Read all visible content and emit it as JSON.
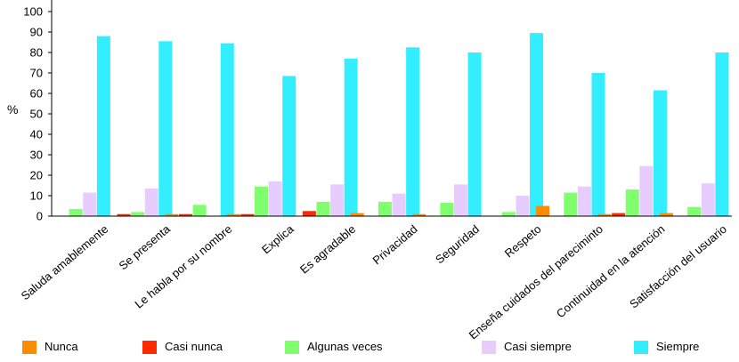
{
  "chart_data": {
    "type": "bar",
    "title": "",
    "xlabel": "",
    "ylabel": "%",
    "ylim": [
      0,
      100
    ],
    "yticks": [
      0,
      10,
      20,
      30,
      40,
      50,
      60,
      70,
      80,
      90,
      100
    ],
    "grid": false,
    "legend_position": "bottom",
    "categories": [
      "Saluda amablemente",
      "Se presenta",
      "Le habla por su nombre",
      "Explica",
      "Es agradable",
      "Privacidad",
      "Seguridad",
      "Respeto",
      "Enseña cuidados del pareciminto",
      "Continuidad en la atención",
      "Satisfacción del usuario"
    ],
    "series": [
      {
        "name": "Nunca",
        "color": "#ff8c00",
        "values": [
          0,
          0,
          1,
          1,
          0,
          1.5,
          1,
          0,
          5,
          1,
          1.5
        ]
      },
      {
        "name": "Casi nunca",
        "color": "#ff2a00",
        "values": [
          0,
          1,
          1,
          1,
          2.5,
          0,
          0,
          0,
          0,
          1.5,
          0
        ]
      },
      {
        "name": "Algunas veces",
        "color": "#80ff6e",
        "values": [
          3.5,
          2,
          5.5,
          14.5,
          7,
          7,
          6.5,
          2,
          11.5,
          13,
          4.5
        ]
      },
      {
        "name": "Casi siempre",
        "color": "#e6ccff",
        "values": [
          11.5,
          13.5,
          0,
          17,
          15.5,
          11,
          15.5,
          10,
          14.5,
          24.5,
          16
        ]
      },
      {
        "name": "Siempre",
        "color": "#33eeff",
        "values": [
          88,
          85.5,
          84.5,
          68.5,
          77,
          82.5,
          80,
          89.5,
          70,
          61.5,
          80
        ]
      }
    ]
  }
}
